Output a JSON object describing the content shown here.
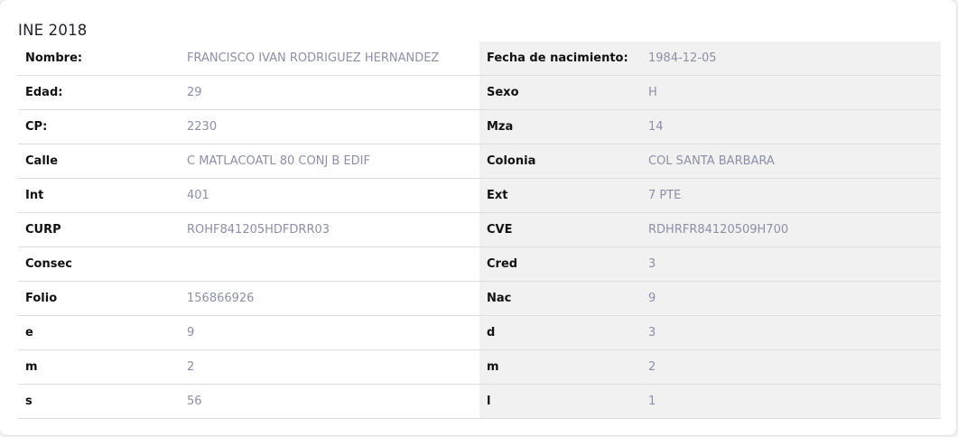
{
  "title": "INE 2018",
  "rows": [
    {
      "l1": "Nombre:",
      "v1": "FRANCISCO IVAN RODRIGUEZ HERNANDEZ",
      "l2": "Fecha de nacimiento:",
      "v2": "1984-12-05"
    },
    {
      "l1": "Edad:",
      "v1": "29",
      "l2": "Sexo",
      "v2": "H"
    },
    {
      "l1": "CP:",
      "v1": "2230",
      "l2": "Mza",
      "v2": "14"
    },
    {
      "l1": "Calle",
      "v1": "C MATLACOATL 80 CONJ B EDIF",
      "l2": "Colonia",
      "v2": "COL SANTA BARBARA"
    },
    {
      "l1": "Int",
      "v1": "401",
      "l2": "Ext",
      "v2": "7 PTE"
    },
    {
      "l1": "CURP",
      "v1": "ROHF841205HDFDRR03",
      "l2": "CVE",
      "v2": "RDHRFR84120509H700"
    },
    {
      "l1": "Consec",
      "v1": "",
      "l2": "Cred",
      "v2": "3"
    },
    {
      "l1": "Folio",
      "v1": "156866926",
      "l2": "Nac",
      "v2": "9"
    },
    {
      "l1": "e",
      "v1": "9",
      "l2": "d",
      "v2": "3"
    },
    {
      "l1": "m",
      "v1": "2",
      "l2": "m",
      "v2": "2"
    },
    {
      "l1": "s",
      "v1": "56",
      "l2": "l",
      "v2": "1"
    }
  ]
}
